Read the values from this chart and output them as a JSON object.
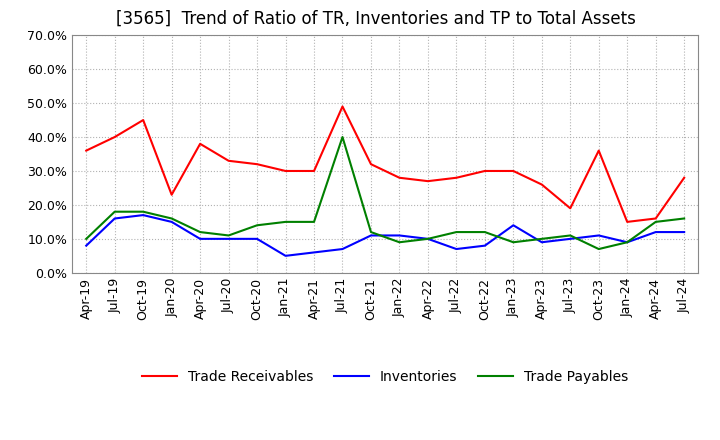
{
  "title": "[3565]  Trend of Ratio of TR, Inventories and TP to Total Assets",
  "labels": [
    "Apr-19",
    "Jul-19",
    "Oct-19",
    "Jan-20",
    "Apr-20",
    "Jul-20",
    "Oct-20",
    "Jan-21",
    "Apr-21",
    "Jul-21",
    "Oct-21",
    "Jan-22",
    "Apr-22",
    "Jul-22",
    "Oct-22",
    "Jan-23",
    "Apr-23",
    "Jul-23",
    "Oct-23",
    "Jan-24",
    "Apr-24",
    "Jul-24"
  ],
  "trade_receivables": [
    0.36,
    0.4,
    0.45,
    0.23,
    0.38,
    0.33,
    0.32,
    0.3,
    0.3,
    0.49,
    0.32,
    0.28,
    0.27,
    0.28,
    0.3,
    0.3,
    0.26,
    0.19,
    0.36,
    0.15,
    0.16,
    0.28
  ],
  "inventories": [
    0.08,
    0.16,
    0.17,
    0.15,
    0.1,
    0.1,
    0.1,
    0.05,
    0.06,
    0.07,
    0.11,
    0.11,
    0.1,
    0.07,
    0.08,
    0.14,
    0.09,
    0.1,
    0.11,
    0.09,
    0.12,
    0.12
  ],
  "trade_payables": [
    0.1,
    0.18,
    0.18,
    0.16,
    0.12,
    0.11,
    0.14,
    0.15,
    0.15,
    0.4,
    0.12,
    0.09,
    0.1,
    0.12,
    0.12,
    0.09,
    0.1,
    0.11,
    0.07,
    0.09,
    0.15,
    0.16
  ],
  "tr_color": "#ff0000",
  "inv_color": "#0000ff",
  "tp_color": "#008000",
  "ylim": [
    0.0,
    0.7
  ],
  "yticks": [
    0.0,
    0.1,
    0.2,
    0.3,
    0.4,
    0.5,
    0.6,
    0.7
  ],
  "background_color": "#ffffff",
  "grid_color": "#aaaaaa",
  "title_fontsize": 12,
  "tick_fontsize": 9,
  "legend_fontsize": 10
}
